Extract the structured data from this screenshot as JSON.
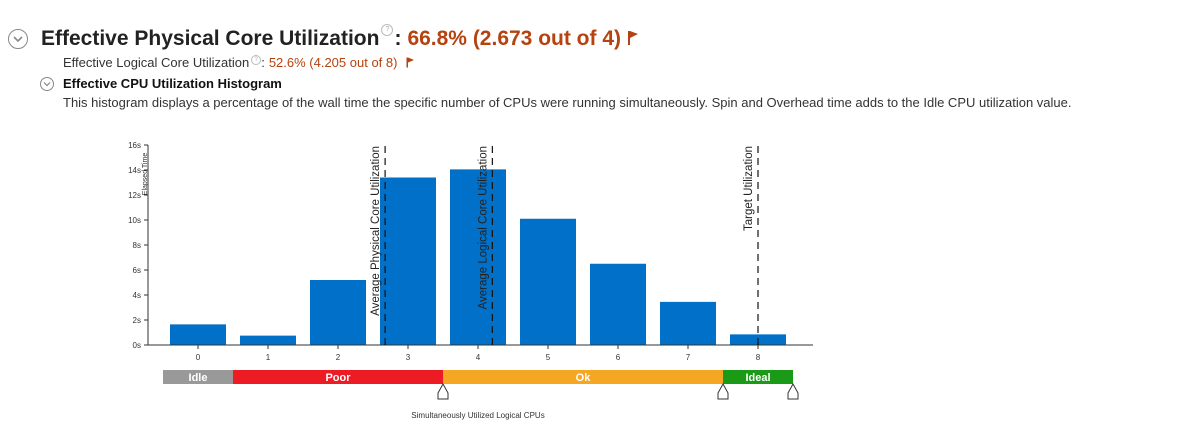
{
  "header": {
    "title": "Effective Physical Core Utilization",
    "help": "?",
    "colon": ":",
    "value": "66.8% (2.673 out of 4)",
    "accent": "#b5420f"
  },
  "logical": {
    "label": "Effective Logical Core Utilization",
    "help": "?",
    "colon": ":",
    "value": "52.6% (4.205 out of 8)"
  },
  "histogram": {
    "title": "Effective CPU Utilization Histogram",
    "description": "This histogram displays a percentage of the wall time the specific number of CPUs were running simultaneously. Spin and Overhead time adds to the Idle CPU utilization value."
  },
  "chart_data": {
    "type": "bar",
    "categories": [
      "0",
      "1",
      "2",
      "3",
      "4",
      "5",
      "6",
      "7",
      "8"
    ],
    "values": [
      1.65,
      0.75,
      5.2,
      13.4,
      14.05,
      10.1,
      6.5,
      3.45,
      0.85
    ],
    "ylabel": "Elapsed Time",
    "xlabel": "Simultaneously Utilized Logical CPUs",
    "ylim": [
      0,
      16
    ],
    "y_ticks": [
      "0s",
      "2s",
      "4s",
      "6s",
      "8s",
      "10s",
      "12s",
      "14s",
      "16s"
    ],
    "bar_color": "#0070c8",
    "markers": [
      {
        "label": "Average Physical Core Utilization",
        "x": 2.673
      },
      {
        "label": "Average Logical Core Utilization",
        "x": 4.205
      },
      {
        "label": "Target Utilization",
        "x": 8
      }
    ],
    "zones": [
      {
        "label": "Idle",
        "from": -0.5,
        "to": 0.5,
        "color": "#999999"
      },
      {
        "label": "Poor",
        "from": 0.5,
        "to": 3.5,
        "color": "#ed1c24"
      },
      {
        "label": "Ok",
        "from": 3.5,
        "to": 7.5,
        "color": "#f5a623"
      },
      {
        "label": "Ideal",
        "from": 7.5,
        "to": 8.5,
        "color": "#1a9a16"
      }
    ],
    "thresholds": [
      3.5,
      7.5,
      8.5
    ]
  }
}
